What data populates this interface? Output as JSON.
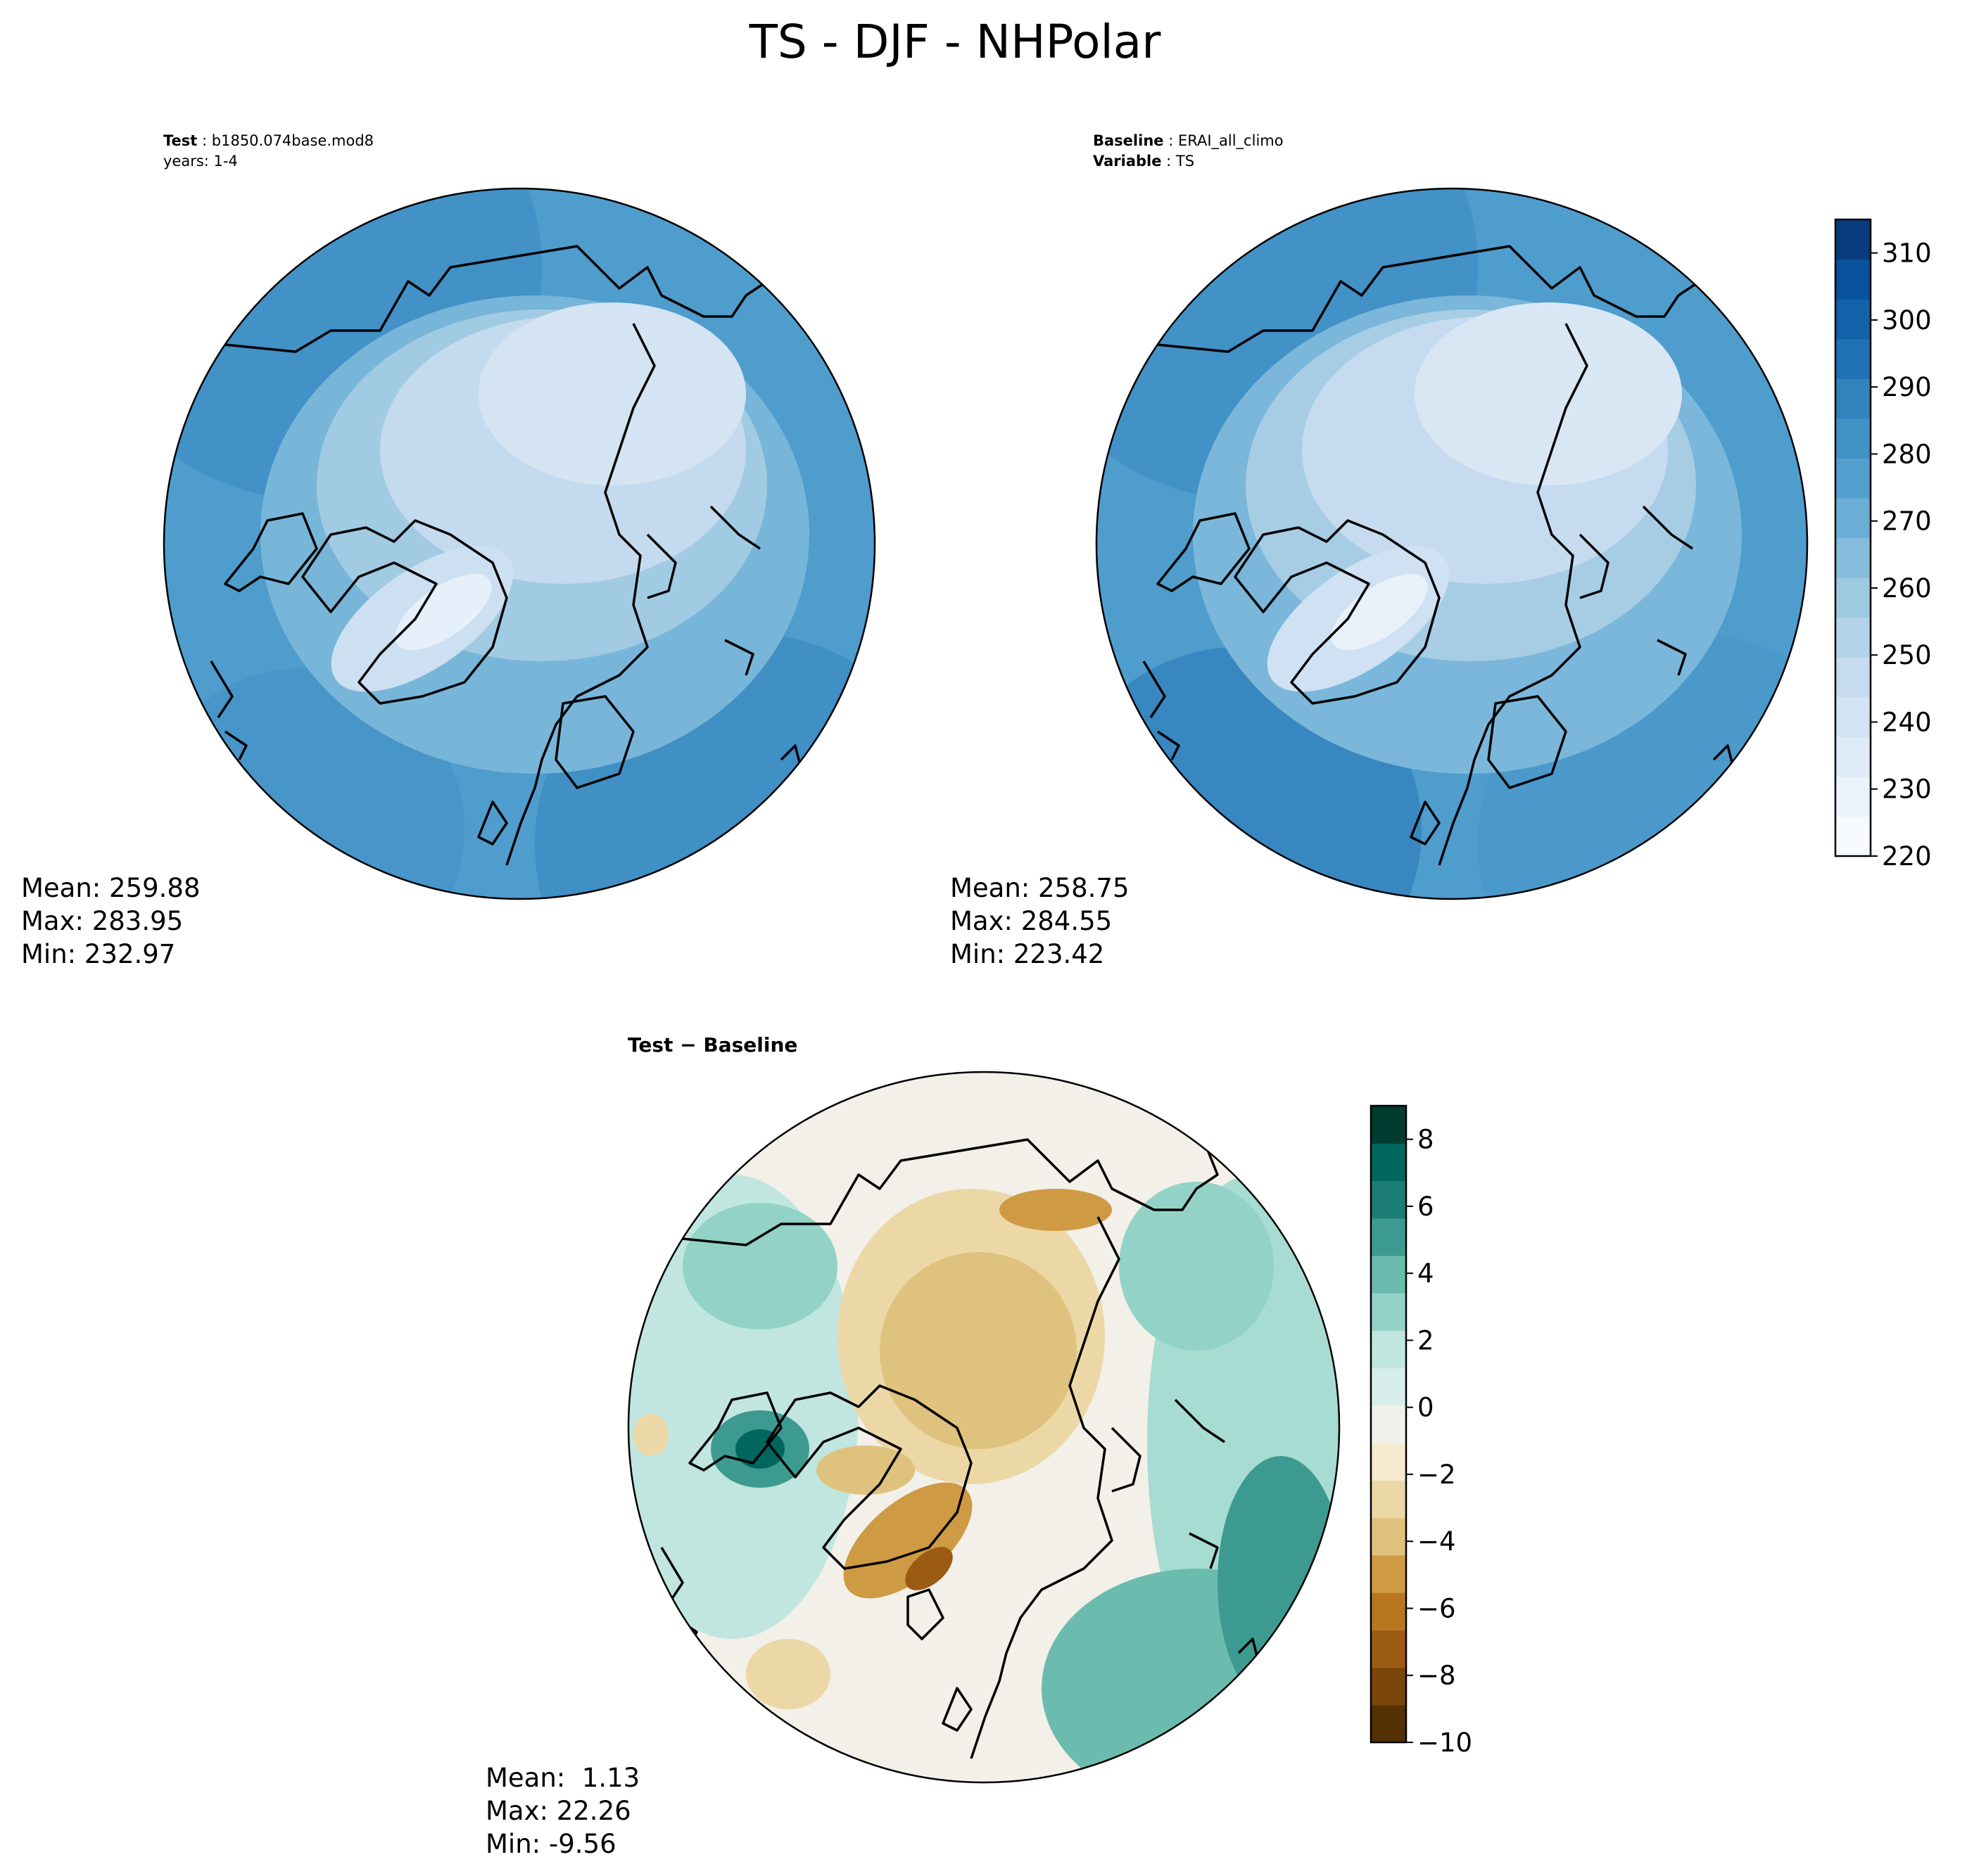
{
  "figure": {
    "title": "TS - DJF - NHPolar"
  },
  "panels": {
    "test": {
      "label_key": "Test",
      "label_value": "b1850.074base.mod8",
      "line2": "years: 1-4",
      "stats": {
        "mean": "Mean: 259.88",
        "max": "Max: 283.95",
        "min": "Min: 232.97"
      }
    },
    "baseline": {
      "label_key": "Baseline",
      "label_value": "ERAI_all_climo",
      "line2_key": "Variable",
      "line2_value": "TS",
      "stats": {
        "mean": "Mean: 258.75",
        "max": "Max: 284.55",
        "min": "Min: 223.42"
      }
    },
    "diff": {
      "title": "Test − Baseline",
      "stats": {
        "mean": "Mean:  1.13",
        "max": "Max: 22.26",
        "min": "Min: -9.56"
      }
    }
  },
  "colorbars": {
    "main": {
      "colormap": "Blues",
      "range": [
        220,
        315
      ],
      "tick_values": [
        220,
        230,
        240,
        250,
        260,
        270,
        280,
        290,
        300,
        310
      ],
      "tick_labels": [
        "220",
        "230",
        "240",
        "250",
        "260",
        "270",
        "280",
        "290",
        "300",
        "310"
      ]
    },
    "diff": {
      "colormap": "BrBG",
      "range": [
        -10,
        9
      ],
      "tick_values": [
        -10,
        -8,
        -6,
        -4,
        -2,
        0,
        2,
        4,
        6,
        8
      ],
      "tick_labels": [
        "−10",
        "−8",
        "−6",
        "−4",
        "−2",
        "0",
        "2",
        "4",
        "6",
        "8"
      ]
    }
  },
  "colors": {
    "blues": [
      "#f7fbff",
      "#ebf3fb",
      "#deebf7",
      "#d2e3f3",
      "#c6dbef",
      "#b3d3e8",
      "#9ecae1",
      "#85bcdc",
      "#6baed6",
      "#549fcd",
      "#4292c6",
      "#3182bd",
      "#2171b5",
      "#1361a9",
      "#08519c",
      "#083b7d"
    ],
    "brbg": [
      "#543005",
      "#7a460a",
      "#9c5b13",
      "#b8771f",
      "#cf9a44",
      "#dfc27d",
      "#ecd8a6",
      "#f6ebcf",
      "#f1f0eb",
      "#d8eeeb",
      "#c0e6df",
      "#93d3c7",
      "#6bbcaf",
      "#3d9a91",
      "#1b7d74",
      "#01665e",
      "#003c30"
    ],
    "coastline": "#000000"
  }
}
